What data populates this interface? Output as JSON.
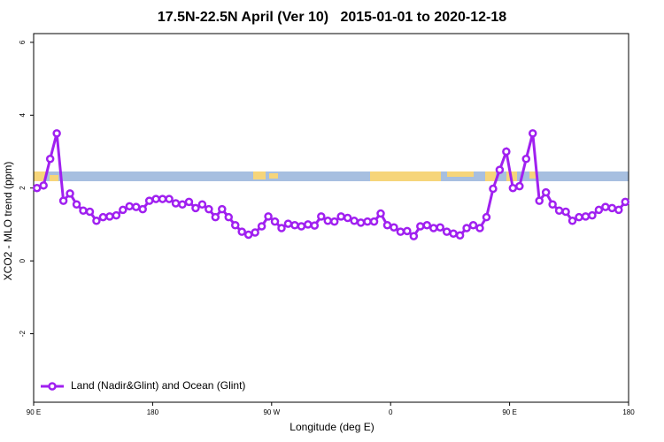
{
  "chart_data": {
    "type": "line",
    "title": "17.5N-22.5N April (Ver 10)   2015-01-01 to 2020-12-18",
    "x_label": "Longitude (deg E)",
    "y_label": "XCO2 - MLO trend (ppm)",
    "x": [
      92.5,
      97.5,
      102.5,
      107.5,
      112.5,
      117.5,
      122.5,
      127.5,
      132.5,
      137.5,
      142.5,
      147.5,
      152.5,
      157.5,
      162.5,
      167.5,
      172.5,
      177.5,
      182.5,
      187.5,
      192.5,
      197.5,
      202.5,
      207.5,
      212.5,
      217.5,
      222.5,
      227.5,
      232.5,
      237.5,
      242.5,
      247.5,
      252.5,
      257.5,
      262.5,
      267.5,
      272.5,
      277.5,
      282.5,
      287.5,
      292.5,
      297.5,
      302.5,
      307.5,
      312.5,
      317.5,
      322.5,
      327.5,
      332.5,
      337.5,
      342.5,
      347.5,
      352.5,
      357.5,
      362.5,
      367.5,
      372.5,
      377.5,
      382.5,
      387.5,
      392.5,
      397.5,
      402.5,
      407.5,
      412.5,
      417.5,
      422.5,
      427.5,
      432.5,
      437.5,
      442.5,
      447.5,
      452.5,
      457.5,
      462.5,
      467.5,
      472.5,
      477.5,
      482.5,
      487.5,
      492.5,
      497.5,
      502.5,
      507.5,
      512.5,
      517.5,
      522.5,
      527.5,
      532.5,
      537.5
    ],
    "series": [
      {
        "name": "Land (Nadir&Glint) and Ocean (Glint)",
        "color": "#a020f0",
        "values": [
          2.0,
          2.07,
          2.8,
          3.5,
          1.65,
          1.85,
          1.55,
          1.38,
          1.35,
          1.1,
          1.2,
          1.22,
          1.25,
          1.4,
          1.5,
          1.48,
          1.42,
          1.65,
          1.7,
          1.7,
          1.7,
          1.58,
          1.55,
          1.62,
          1.45,
          1.55,
          1.42,
          1.2,
          1.42,
          1.2,
          0.98,
          0.8,
          0.72,
          0.78,
          0.95,
          1.22,
          1.08,
          0.9,
          1.02,
          0.98,
          0.95,
          1.0,
          0.97,
          1.22,
          1.1,
          1.08,
          1.22,
          1.18,
          1.1,
          1.05,
          1.08,
          1.08,
          1.3,
          0.98,
          0.92,
          0.8,
          0.82,
          0.68,
          0.95,
          0.98,
          0.9,
          0.92,
          0.8,
          0.75,
          0.7,
          0.9,
          0.98,
          0.9,
          1.2,
          1.98,
          2.5,
          3.0,
          2.0,
          2.05,
          2.8,
          3.5,
          1.65,
          1.88,
          1.55,
          1.38,
          1.35,
          1.1,
          1.2,
          1.22,
          1.25,
          1.4,
          1.48,
          1.45,
          1.4,
          1.62
        ]
      }
    ],
    "xlim": [
      90,
      540
    ],
    "xticks": [
      {
        "value": 90,
        "label": "90 E"
      },
      {
        "value": 180,
        "label": "180"
      },
      {
        "value": 270,
        "label": "90 W"
      },
      {
        "value": 360,
        "label": "0"
      },
      {
        "value": 450,
        "label": "90 E"
      },
      {
        "value": 540,
        "label": "180"
      }
    ],
    "ylim": [
      -3.88,
      6.24
    ],
    "yticks": [
      -2,
      0,
      2,
      4,
      6
    ],
    "legend": "bottomleft"
  }
}
